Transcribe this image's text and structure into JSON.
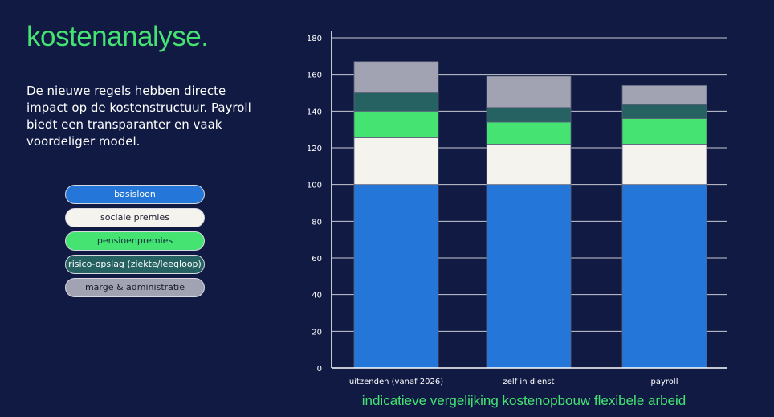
{
  "title": "kostenanalyse.",
  "description": "De nieuwe regels hebben directe impact op de kostenstructuur. Payroll biedt een transparanter en vaak voordeliger model.",
  "legend": [
    {
      "label": "basisloon",
      "color": "#2477d9",
      "text": "#ffffff"
    },
    {
      "label": "sociale premies",
      "color": "#f5f3ee",
      "text": "#1a1a2e"
    },
    {
      "label": "pensioenpremies",
      "color": "#44e372",
      "text": "#10303a"
    },
    {
      "label": "risico-opslag (ziekte/leegloop)",
      "color": "#266262",
      "text": "#ffffff"
    },
    {
      "label": "marge & administratie",
      "color": "#a1a3b3",
      "text": "#1a1a2e"
    }
  ],
  "chart_data": {
    "type": "bar",
    "stacked": true,
    "title": "indicatieve vergelijking kostenopbouw flexibele arbeid",
    "categories": [
      "uitzenden (vanaf 2026)",
      "zelf in dienst",
      "payroll"
    ],
    "series": [
      {
        "name": "basisloon",
        "values": [
          100,
          100,
          100
        ]
      },
      {
        "name": "sociale premies",
        "values": [
          25.5,
          22,
          22
        ]
      },
      {
        "name": "pensioenpremies",
        "values": [
          14.5,
          12,
          14
        ]
      },
      {
        "name": "risico-opslag (ziekte/leegloop)",
        "values": [
          10,
          8,
          7.5
        ]
      },
      {
        "name": "marge & administratie",
        "values": [
          17,
          17,
          10.5
        ]
      }
    ],
    "ylim": [
      0,
      180
    ],
    "yticks": [
      0,
      20,
      40,
      60,
      80,
      100,
      120,
      140,
      160,
      180
    ],
    "grid": true
  }
}
